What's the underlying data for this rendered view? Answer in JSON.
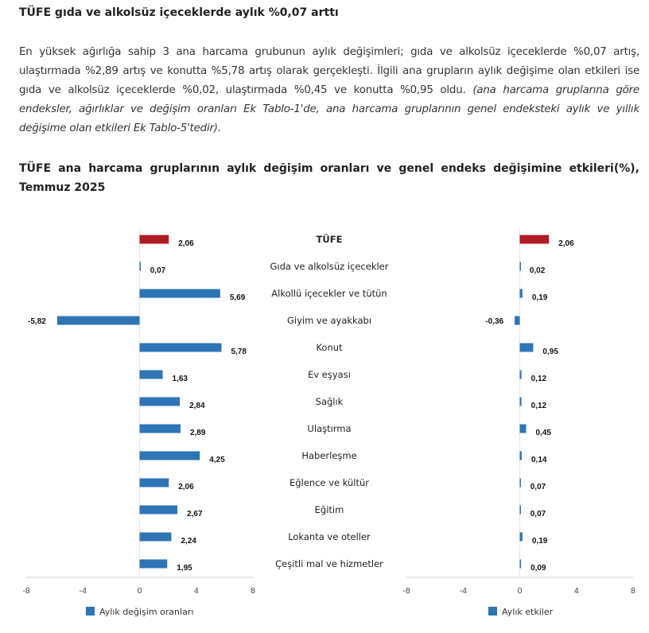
{
  "heading": "TÜFE gıda ve alkolsüz içeceklerde aylık %0,07 arttı",
  "paragraph": {
    "text": "En yüksek ağırlığa sahip 3 ana harcama grubunun aylık değişimleri; gıda ve alkolsüz içeceklerde %0,07 artış, ulaştırmada %2,89 artış ve konutta %5,78 artış olarak gerçekleşti. İlgili ana grupların aylık değişime olan etkileri ise gıda ve alkolsüz içeceklerde %0,02, ulaştırmada %0,45 ve konutta %0,95 oldu. ",
    "italic": "(ana harcama gruplarına göre endeksler, ağırlıklar ve değişim oranları Ek Tablo-1'de, ana harcama gruplarının genel endeksteki aylık ve yıllık değişime olan etkileri Ek Tablo-5'tedir)."
  },
  "chart_title": "TÜFE ana harcama gruplarının aylık değişim oranları ve genel endeks değişimine etkileri(%), Temmuz 2025",
  "colors": {
    "highlight": "#b01c21",
    "bar": "#2e75b6"
  },
  "chart_data": [
    {
      "type": "bar",
      "orientation": "horizontal",
      "categories": [
        "TÜFE",
        "Gıda ve alkolsüz içecekler",
        "Alkollü içecekler ve tütün",
        "Giyim ve ayakkabı",
        "Konut",
        "Ev eşyası",
        "Sağlık",
        "Ulaştırma",
        "Haberleşme",
        "Eğlence ve kültür",
        "Eğitim",
        "Lokanta ve oteller",
        "Çeşitli mal ve hizmetler"
      ],
      "series": [
        {
          "name": "Aylık değişim oranları",
          "values": [
            2.06,
            0.07,
            5.69,
            -5.82,
            5.78,
            1.63,
            2.84,
            2.89,
            4.25,
            2.06,
            2.67,
            2.24,
            1.95
          ]
        }
      ],
      "value_labels": [
        "2,06",
        "0,07",
        "5,69",
        "-5,82",
        "5,78",
        "1,63",
        "2,84",
        "2,89",
        "4,25",
        "2,06",
        "2,67",
        "2,24",
        "1,95"
      ],
      "xlim": [
        -8,
        8
      ],
      "xticks": [
        "-8",
        "-4",
        "0",
        "4",
        "8"
      ],
      "legend": "bottom"
    },
    {
      "type": "bar",
      "orientation": "horizontal",
      "series": [
        {
          "name": "Aylık etkiler",
          "values": [
            2.06,
            0.02,
            0.19,
            -0.36,
            0.95,
            0.12,
            0.12,
            0.45,
            0.14,
            0.07,
            0.07,
            0.19,
            0.09
          ]
        }
      ],
      "value_labels": [
        "2,06",
        "0,02",
        "0,19",
        "-0,36",
        "0,95",
        "0,12",
        "0,12",
        "0,45",
        "0,14",
        "0,07",
        "0,07",
        "0,19",
        "0,09"
      ],
      "xlim": [
        -8,
        8
      ],
      "xticks": [
        "-8",
        "-4",
        "0",
        "4",
        "8"
      ],
      "legend": "bottom"
    }
  ]
}
